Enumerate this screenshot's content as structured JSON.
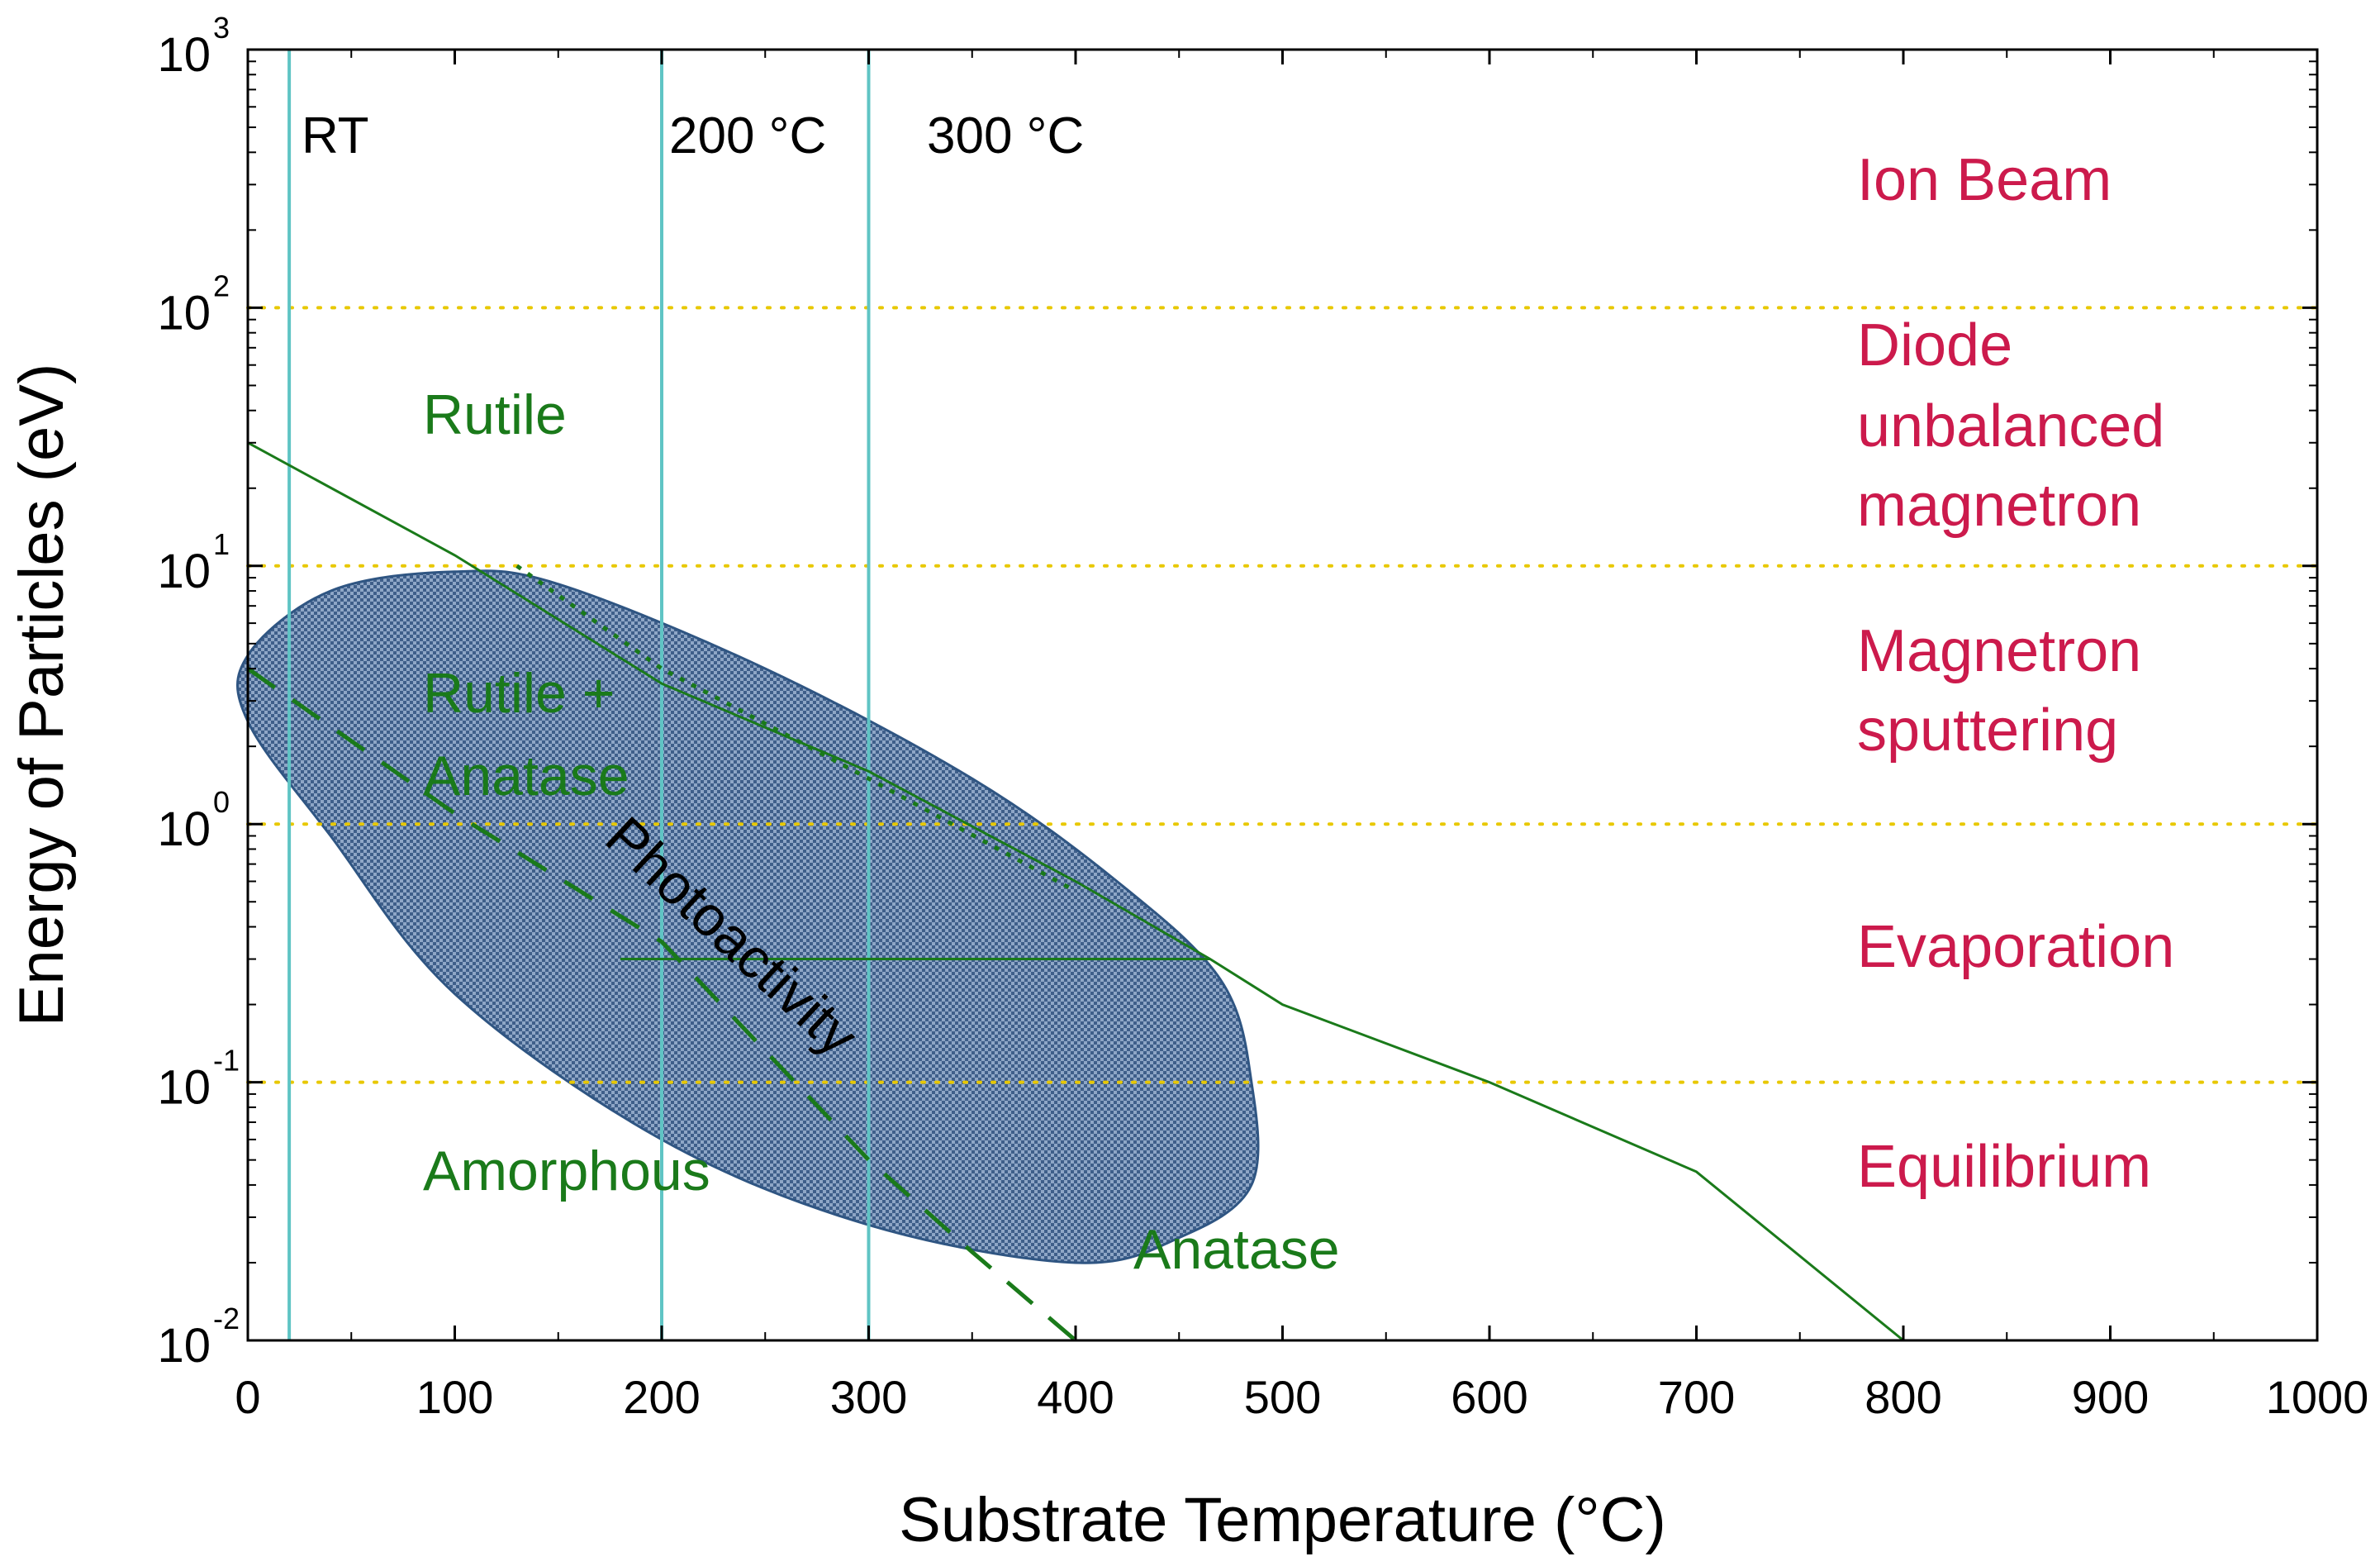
{
  "chart_data": {
    "type": "line",
    "title": "",
    "xlabel": "Substrate Temperature (°C)",
    "ylabel": "Energy of Particles (eV)",
    "xlim": [
      0,
      1000
    ],
    "ylim": [
      0.01,
      1000
    ],
    "yscale": "log",
    "x_ticks": [
      0,
      100,
      200,
      300,
      400,
      500,
      600,
      700,
      800,
      900,
      1000
    ],
    "y_ticks": [
      {
        "value": 0.01,
        "base": "10",
        "exp": "-2"
      },
      {
        "value": 0.1,
        "base": "10",
        "exp": "-1"
      },
      {
        "value": 1,
        "base": "10",
        "exp": "0"
      },
      {
        "value": 10,
        "base": "10",
        "exp": "1"
      },
      {
        "value": 100,
        "base": "10",
        "exp": "2"
      },
      {
        "value": 1000,
        "base": "10",
        "exp": "3"
      }
    ],
    "vertical_lines": [
      {
        "x": 20,
        "label": "RT"
      },
      {
        "x": 200,
        "label": "200 °C"
      },
      {
        "x": 300,
        "label": "300 °C"
      }
    ],
    "horizontal_dotted_lines": [
      0.1,
      1,
      10,
      100
    ],
    "boundaries": [
      {
        "name": "rutile-boundary",
        "style": "solid",
        "points": [
          [
            0,
            30
          ],
          [
            100,
            11
          ],
          [
            200,
            3.5
          ],
          [
            300,
            1.6
          ],
          [
            400,
            0.6
          ],
          [
            465,
            0.3
          ],
          [
            500,
            0.2
          ],
          [
            600,
            0.1
          ],
          [
            700,
            0.045
          ],
          [
            800,
            0.01
          ]
        ]
      },
      {
        "name": "amorphous-boundary",
        "style": "dashed",
        "points": [
          [
            0,
            4
          ],
          [
            100,
            1.1
          ],
          [
            200,
            0.35
          ],
          [
            300,
            0.05
          ],
          [
            350,
            0.022
          ],
          [
            400,
            0.01
          ]
        ]
      },
      {
        "name": "photoactivity-upper",
        "style": "dotted",
        "points": [
          [
            130,
            10
          ],
          [
            200,
            4
          ],
          [
            300,
            1.5
          ],
          [
            400,
            0.55
          ]
        ]
      },
      {
        "name": "photoactivity-mid",
        "style": "solid",
        "points": [
          [
            180,
            0.3
          ],
          [
            465,
            0.3
          ]
        ]
      }
    ],
    "photoactivity_region": {
      "label": "Photoactivity",
      "outline": [
        [
          0,
          4.5
        ],
        [
          40,
          8
        ],
        [
          100,
          9.5
        ],
        [
          150,
          8.5
        ],
        [
          250,
          4
        ],
        [
          350,
          1.5
        ],
        [
          420,
          0.6
        ],
        [
          470,
          0.25
        ],
        [
          485,
          0.1
        ],
        [
          485,
          0.04
        ],
        [
          450,
          0.025
        ],
        [
          400,
          0.02
        ],
        [
          300,
          0.028
        ],
        [
          200,
          0.06
        ],
        [
          100,
          0.22
        ],
        [
          40,
          0.9
        ],
        [
          0,
          2.5
        ]
      ]
    },
    "phase_labels": [
      {
        "text": "Rutile",
        "x": 85,
        "y": 30
      },
      {
        "text": "Rutile +",
        "x": 85,
        "y": 3.3
      },
      {
        "text": "Anatase",
        "x": 85,
        "y": 1.5
      },
      {
        "text": "Amorphous",
        "x": 85,
        "y": 0.045
      },
      {
        "text": "Anatase",
        "x": 430,
        "y": 0.025
      }
    ],
    "process_labels": [
      {
        "text": "Ion Beam"
      },
      {
        "text": "Diode"
      },
      {
        "text": "unbalanced"
      },
      {
        "text": "magnetron"
      },
      {
        "text": "Magnetron"
      },
      {
        "text": "sputtering"
      },
      {
        "text": "Evaporation"
      },
      {
        "text": "Equilibrium"
      }
    ],
    "colors": {
      "axis": "#000000",
      "vertical_line": "#5fc4c4",
      "dotted_line": "#e8c800",
      "boundary": "#1a7a1a",
      "region_fill": "#5f7ea8",
      "region_stroke": "#2f5582",
      "phase_text": "#1a7a1a",
      "process_text": "#cc1a4c"
    }
  }
}
